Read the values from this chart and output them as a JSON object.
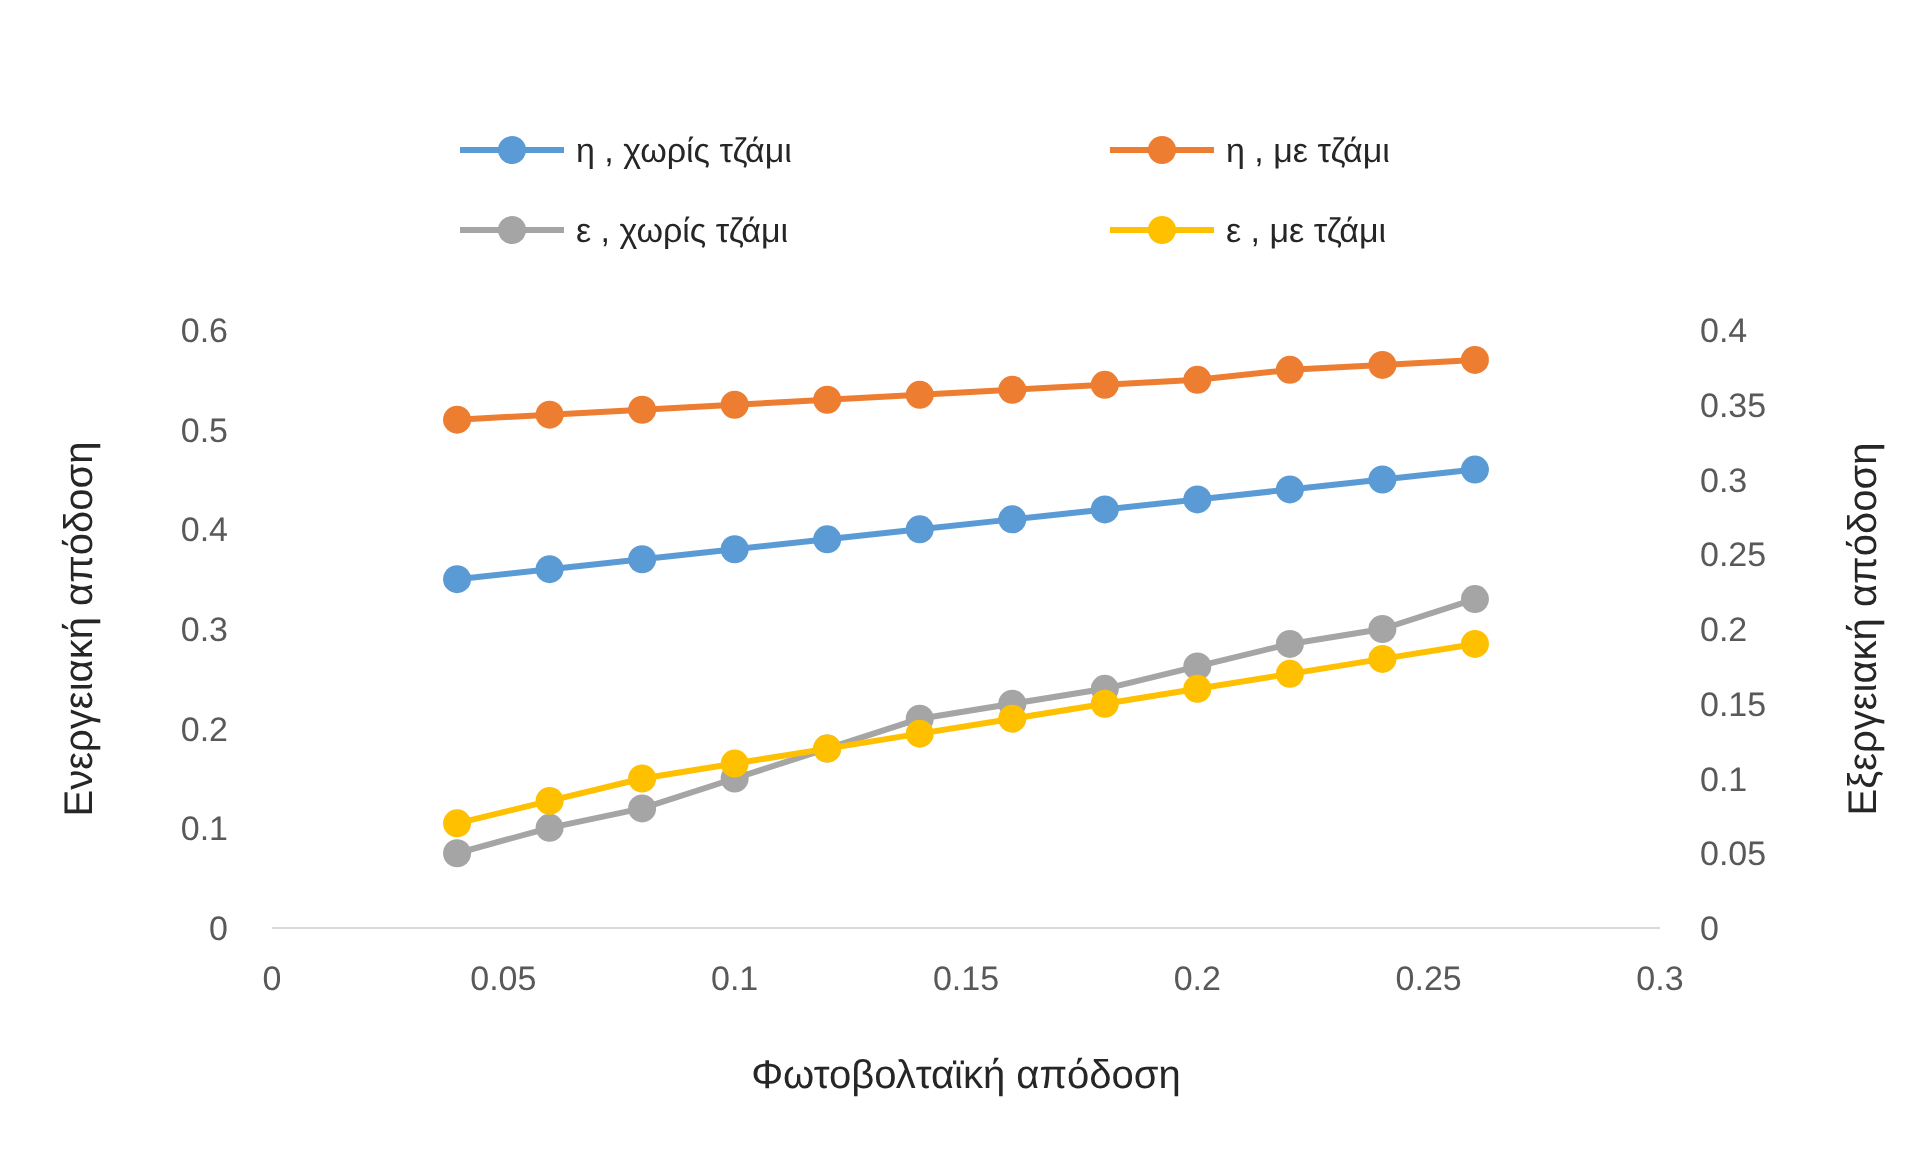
{
  "chart_data": {
    "type": "line",
    "xlabel": "Φωτοβολταϊκή απόδοση",
    "ylabel": "Ενεργειακή απόδοση",
    "y2label": "Εξεργειακή απόδοση",
    "x": [
      0.04,
      0.06,
      0.08,
      0.1,
      0.12,
      0.14,
      0.16,
      0.18,
      0.2,
      0.22,
      0.24,
      0.26
    ],
    "series": [
      {
        "name": "η , χωρίς τζάμι",
        "color": "#5b9bd5",
        "values": [
          0.35,
          0.36,
          0.37,
          0.38,
          0.39,
          0.4,
          0.41,
          0.42,
          0.43,
          0.44,
          0.45,
          0.46
        ]
      },
      {
        "name": "η , με τζάμι",
        "color": "#ed7d31",
        "values": [
          0.51,
          0.515,
          0.52,
          0.525,
          0.53,
          0.535,
          0.54,
          0.545,
          0.55,
          0.56,
          0.565,
          0.57
        ]
      },
      {
        "name": "ε , χωρίς τζάμι",
        "color": "#a5a5a5",
        "axis": "y2",
        "values": [
          0.05,
          0.067,
          0.08,
          0.1,
          0.12,
          0.14,
          0.15,
          0.16,
          0.175,
          0.19,
          0.2,
          0.22
        ]
      },
      {
        "name": "ε , με τζάμι",
        "color": "#ffc000",
        "axis": "y2",
        "values": [
          0.07,
          0.085,
          0.1,
          0.11,
          0.12,
          0.13,
          0.14,
          0.15,
          0.16,
          0.17,
          0.18,
          0.19
        ]
      }
    ],
    "xlim": [
      0,
      0.3
    ],
    "xticks": [
      0,
      0.05,
      0.1,
      0.15,
      0.2,
      0.25,
      0.3
    ],
    "ylim": [
      0,
      0.6
    ],
    "yticks": [
      0,
      0.1,
      0.2,
      0.3,
      0.4,
      0.5,
      0.6
    ],
    "y2lim": [
      0,
      0.4
    ],
    "y2ticks": [
      0,
      0.05,
      0.1,
      0.15,
      0.2,
      0.25,
      0.3,
      0.35,
      0.4
    ],
    "legend": "top",
    "marker": "circle",
    "line_style": "solid",
    "grid": false
  }
}
